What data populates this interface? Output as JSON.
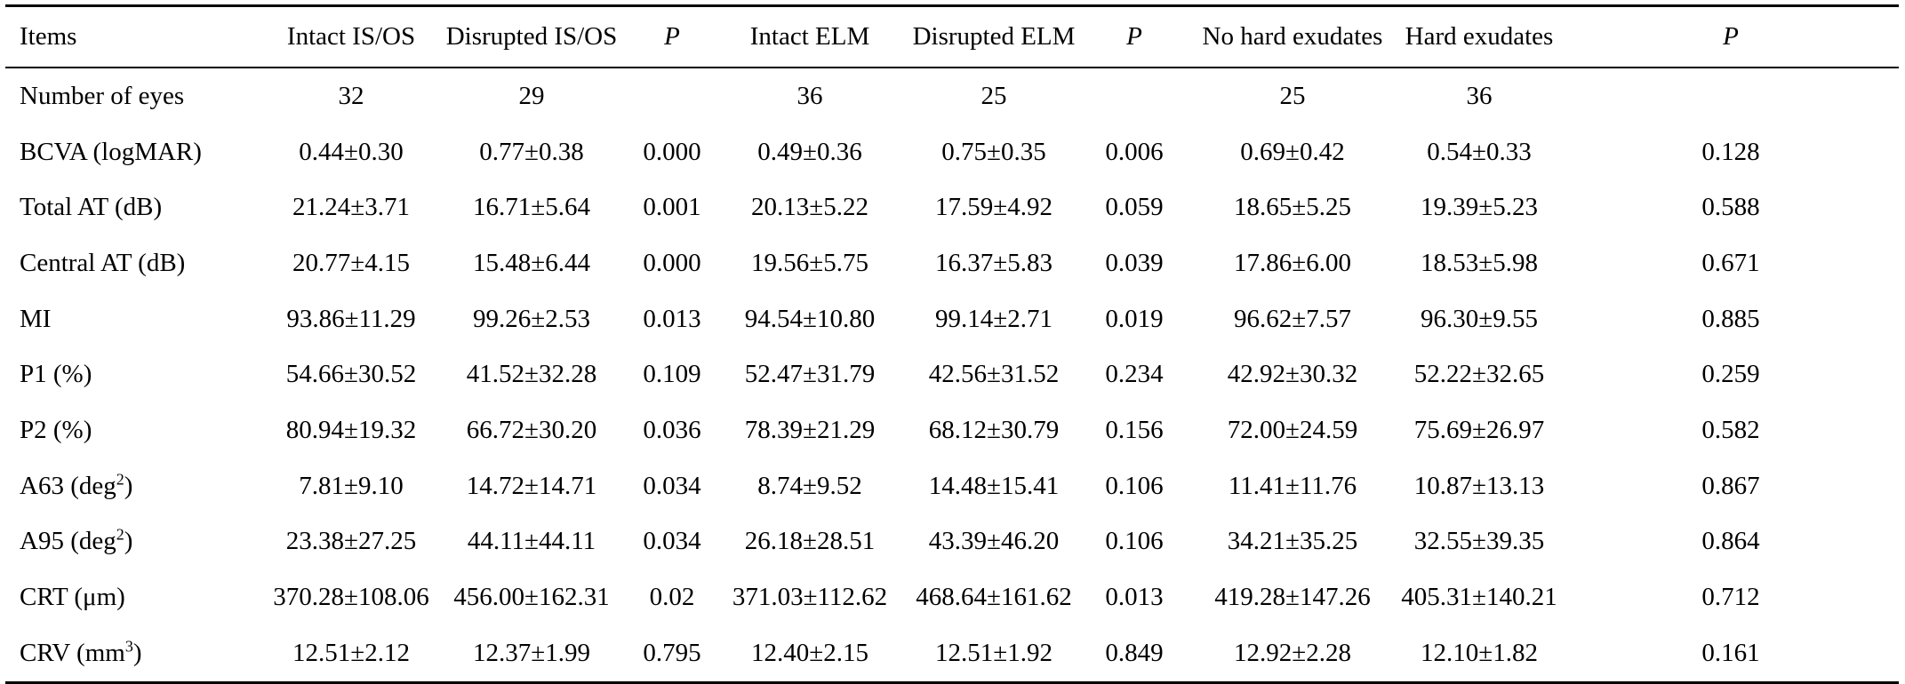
{
  "table": {
    "headers": [
      {
        "label": "Items",
        "italic": false
      },
      {
        "label": "Intact IS/OS",
        "italic": false
      },
      {
        "label": "Disrupted IS/OS",
        "italic": false
      },
      {
        "label": "P",
        "italic": true
      },
      {
        "label": "Intact ELM",
        "italic": false
      },
      {
        "label": "Disrupted ELM",
        "italic": false
      },
      {
        "label": "P",
        "italic": true
      },
      {
        "label": "No hard exudates",
        "italic": false
      },
      {
        "label": "Hard exudates",
        "italic": false
      },
      {
        "label": "P",
        "italic": true
      }
    ],
    "rows": [
      {
        "label": "Number of eyes",
        "label_sup": "",
        "label_suffix": "",
        "cells": [
          "32",
          "29",
          "",
          "36",
          "25",
          "",
          "25",
          "36",
          ""
        ]
      },
      {
        "label": "BCVA (logMAR)",
        "label_sup": "",
        "label_suffix": "",
        "cells": [
          "0.44±0.30",
          "0.77±0.38",
          "0.000",
          "0.49±0.36",
          "0.75±0.35",
          "0.006",
          "0.69±0.42",
          "0.54±0.33",
          "0.128"
        ]
      },
      {
        "label": "Total AT (dB)",
        "label_sup": "",
        "label_suffix": "",
        "cells": [
          "21.24±3.71",
          "16.71±5.64",
          "0.001",
          "20.13±5.22",
          "17.59±4.92",
          "0.059",
          "18.65±5.25",
          "19.39±5.23",
          "0.588"
        ]
      },
      {
        "label": "Central AT (dB)",
        "label_sup": "",
        "label_suffix": "",
        "cells": [
          "20.77±4.15",
          "15.48±6.44",
          "0.000",
          "19.56±5.75",
          "16.37±5.83",
          "0.039",
          "17.86±6.00",
          "18.53±5.98",
          "0.671"
        ]
      },
      {
        "label": "MI",
        "label_sup": "",
        "label_suffix": "",
        "cells": [
          "93.86±11.29",
          "99.26±2.53",
          "0.013",
          "94.54±10.80",
          "99.14±2.71",
          "0.019",
          "96.62±7.57",
          "96.30±9.55",
          "0.885"
        ]
      },
      {
        "label": "P1 (%)",
        "label_sup": "",
        "label_suffix": "",
        "cells": [
          "54.66±30.52",
          "41.52±32.28",
          "0.109",
          "52.47±31.79",
          "42.56±31.52",
          "0.234",
          "42.92±30.32",
          "52.22±32.65",
          "0.259"
        ]
      },
      {
        "label": "P2 (%)",
        "label_sup": "",
        "label_suffix": "",
        "cells": [
          "80.94±19.32",
          "66.72±30.20",
          "0.036",
          "78.39±21.29",
          "68.12±30.79",
          "0.156",
          "72.00±24.59",
          "75.69±26.97",
          "0.582"
        ]
      },
      {
        "label": "A63 (deg",
        "label_sup": "2",
        "label_suffix": ")",
        "cells": [
          "7.81±9.10",
          "14.72±14.71",
          "0.034",
          "8.74±9.52",
          "14.48±15.41",
          "0.106",
          "11.41±11.76",
          "10.87±13.13",
          "0.867"
        ]
      },
      {
        "label": "A95 (deg",
        "label_sup": "2",
        "label_suffix": ")",
        "cells": [
          "23.38±27.25",
          "44.11±44.11",
          "0.034",
          "26.18±28.51",
          "43.39±46.20",
          "0.106",
          "34.21±35.25",
          "32.55±39.35",
          "0.864"
        ]
      },
      {
        "label": "CRT (μm)",
        "label_sup": "",
        "label_suffix": "",
        "cells": [
          "370.28±108.06",
          "456.00±162.31",
          "0.02",
          "371.03±112.62",
          "468.64±161.62",
          "0.013",
          "419.28±147.26",
          "405.31±140.21",
          "0.712"
        ]
      },
      {
        "label": "CRV (mm",
        "label_sup": "3",
        "label_suffix": ")",
        "cells": [
          "12.51±2.12",
          "12.37±1.99",
          "0.795",
          "12.40±2.15",
          "12.51±1.92",
          "0.849",
          "12.92±2.28",
          "12.10±1.82",
          "0.161"
        ]
      }
    ]
  }
}
